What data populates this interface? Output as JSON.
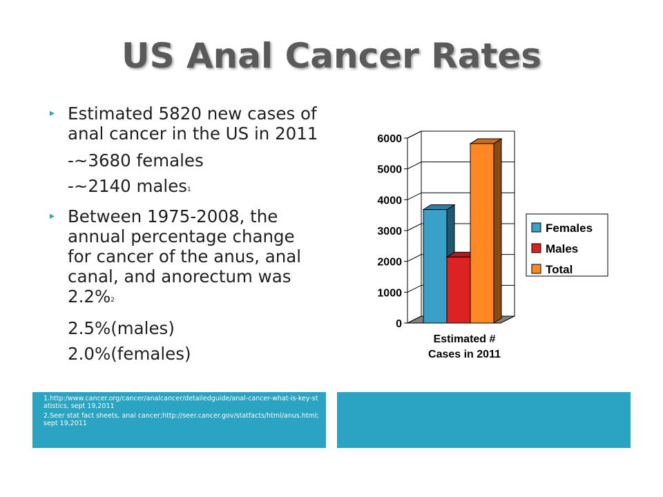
{
  "slide": {
    "title": "US Anal Cancer Rates",
    "bullets": [
      {
        "text": "Estimated 5820 new cases of anal cancer in the US in 2011",
        "sublines": [
          {
            "text": "-~3680 females",
            "ref": ""
          },
          {
            "text": "-~2140 males",
            "ref": "1"
          }
        ]
      },
      {
        "text": "Between 1975-2008, the annual percentage change for cancer of the anus, anal canal, and anorectum was 2.2%",
        "ref": "2",
        "sublines": [
          {
            "text": "2.5%(males)",
            "ref": ""
          },
          {
            "text": "2.0%(females)",
            "ref": ""
          }
        ]
      }
    ],
    "references": [
      "1.http:/www.cancer.org/cancer/analcancer/detailedguide/anal-cancer-what-is-key-statistics, sept 19,2011",
      "2.Seer stat fact sheets, anal cancer;http://seer.cancer.gov/statfacts/html/anus.html; sept 19,2011"
    ],
    "accent_color": "#2ba3c2"
  },
  "chart_data": {
    "type": "bar",
    "style": "3d",
    "categories": [
      "Estimated # Cases in 2011"
    ],
    "category_label_lines": [
      "Estimated #",
      "Cases in 2011"
    ],
    "series": [
      {
        "name": "Females",
        "values": [
          3680
        ],
        "color": "#3aa0c8"
      },
      {
        "name": "Males",
        "values": [
          2140
        ],
        "color": "#dd2222"
      },
      {
        "name": "Total",
        "values": [
          5820
        ],
        "color": "#ff8822"
      }
    ],
    "ylim": [
      0,
      6000
    ],
    "yticks": [
      0,
      1000,
      2000,
      3000,
      4000,
      5000,
      6000
    ],
    "grid": true,
    "legend_position": "right"
  }
}
